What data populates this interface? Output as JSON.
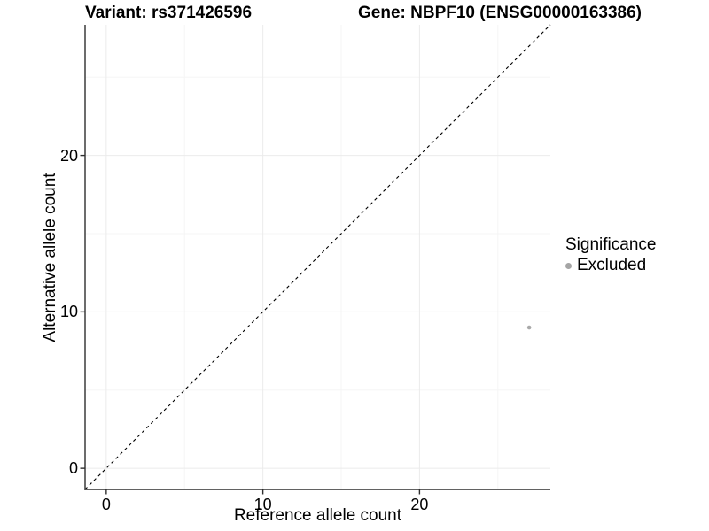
{
  "chart_data": {
    "type": "scatter",
    "titles": {
      "left": "Variant: rs371426596",
      "right": "Gene: NBPF10 (ENSG00000163386)"
    },
    "xlabel": "Reference allele count",
    "ylabel": "Alternative allele count",
    "xlim": [
      -1.35,
      28.35
    ],
    "ylim": [
      -1.35,
      28.35
    ],
    "x_ticks": [
      0,
      10,
      20
    ],
    "y_ticks": [
      0,
      10,
      20
    ],
    "x_minor_ticks": [
      5,
      15,
      25
    ],
    "y_minor_ticks": [
      5,
      15,
      25
    ],
    "grid": "major+minor, light gray on white",
    "identity_line": {
      "style": "dashed",
      "color": "#000000",
      "equation": "y = x"
    },
    "series": [
      {
        "name": "Excluded",
        "color": "#a9a9a9",
        "points": [
          {
            "x": 27,
            "y": 9
          }
        ]
      }
    ],
    "legend": {
      "title": "Significance",
      "position": "right",
      "entries": [
        {
          "label": "Excluded",
          "color": "#a5a5a5"
        }
      ]
    }
  }
}
